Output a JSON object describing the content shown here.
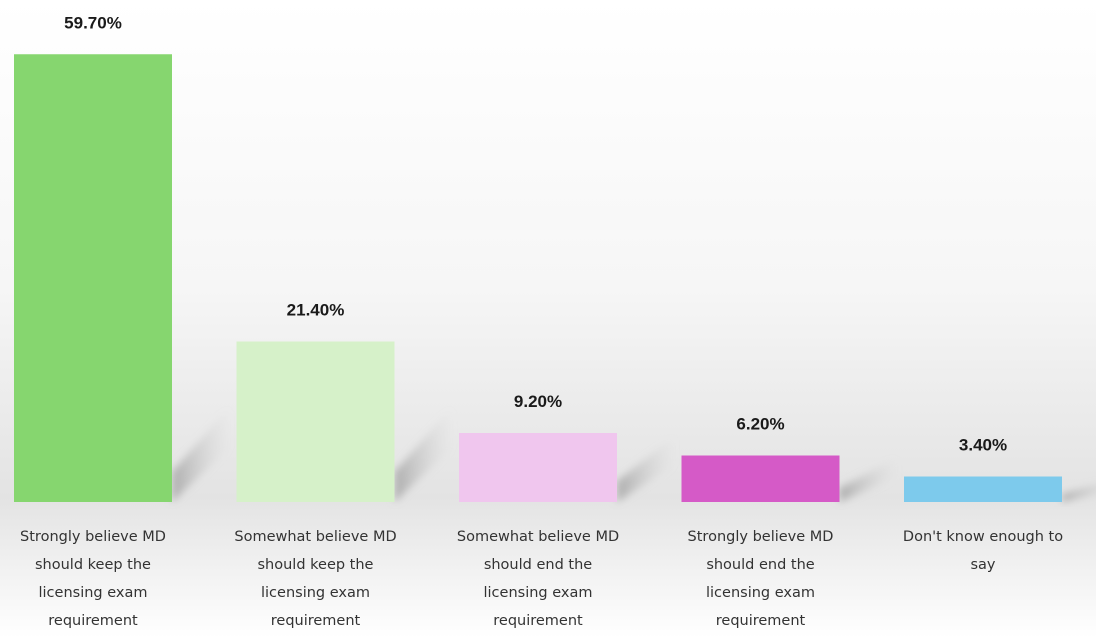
{
  "chart_data": {
    "type": "bar",
    "categories": [
      "Strongly believe MD should keep the licensing exam requirement",
      "Somewhat believe MD should keep the licensing exam requirement",
      "Somewhat believe MD should end the licensing exam requirement",
      "Strongly believe MD should end the licensing exam requirement",
      "Don't know enough to say"
    ],
    "category_lines": [
      [
        "Strongly believe MD",
        "should keep the",
        "licensing exam",
        "requirement"
      ],
      [
        "Somewhat believe MD",
        "should keep the",
        "licensing exam",
        "requirement"
      ],
      [
        "Somewhat believe MD",
        "should end the",
        "licensing exam",
        "requirement"
      ],
      [
        "Strongly believe MD",
        "should end the",
        "licensing exam",
        "requirement"
      ],
      [
        "Don't know enough to",
        "say"
      ]
    ],
    "values": [
      59.7,
      21.4,
      9.2,
      6.2,
      3.4
    ],
    "data_labels": [
      "59.70%",
      "21.40%",
      "9.20%",
      "6.20%",
      "3.40%"
    ],
    "colors": [
      "#86d66f",
      "#d6f1c9",
      "#f0c6ee",
      "#d55ac7",
      "#7dcaec"
    ],
    "ylim": [
      0,
      60
    ],
    "title": "",
    "xlabel": "",
    "ylabel": "",
    "grid": false,
    "legend": "none"
  }
}
